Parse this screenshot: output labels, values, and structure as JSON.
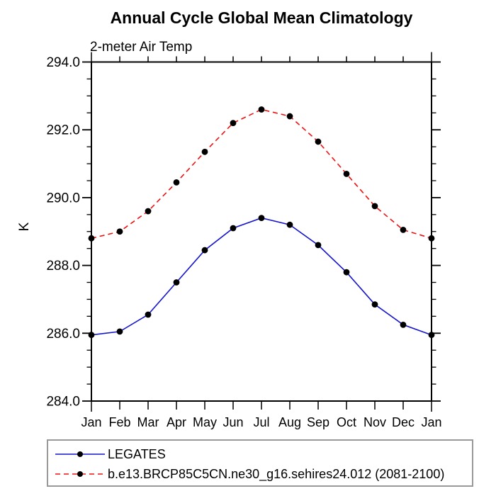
{
  "colors": {
    "background": "#ffffff",
    "axis": "#000000",
    "text": "#000000",
    "legend_border": "#999999"
  },
  "chart_data": {
    "type": "line",
    "title": "Annual Cycle Global Mean Climatology",
    "subtitle": "2-meter Air Temp",
    "ylabel": "K",
    "xlabel": "",
    "categories": [
      "Jan",
      "Feb",
      "Mar",
      "Apr",
      "May",
      "Jun",
      "Jul",
      "Aug",
      "Sep",
      "Oct",
      "Nov",
      "Dec",
      "Jan"
    ],
    "ylim": [
      284.0,
      294.0
    ],
    "ytick_major_interval": 2.0,
    "ytick_minor_interval": 0.5,
    "ytick_labels": [
      "284.0",
      "286.0",
      "288.0",
      "290.0",
      "292.0",
      "294.0"
    ],
    "grid": false,
    "legend_position": "bottom-left-box",
    "marker": "filled-circle",
    "marker_color": "#000000",
    "series": [
      {
        "name": "LEGATES",
        "color": "#1414cd",
        "line_style": "solid",
        "values": [
          285.95,
          286.05,
          286.55,
          287.5,
          288.45,
          289.1,
          289.4,
          289.2,
          288.6,
          287.8,
          286.85,
          286.25,
          285.95
        ]
      },
      {
        "name": "b.e13.BRCP85C5CN.ne30_g16.sehires24.012 (2081-2100)",
        "color": "#ee1111",
        "line_style": "dashed",
        "values": [
          288.8,
          289.0,
          289.6,
          290.45,
          291.35,
          292.2,
          292.6,
          292.4,
          291.65,
          290.7,
          289.75,
          289.05,
          288.8
        ]
      }
    ]
  }
}
